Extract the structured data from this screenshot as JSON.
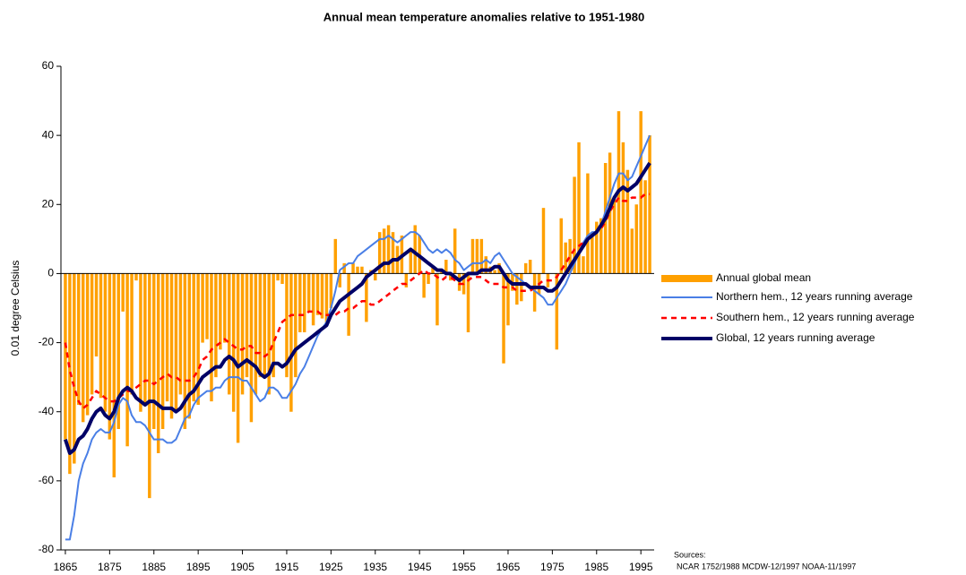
{
  "chart_data": {
    "type": "combo",
    "title": "Annual mean temperature anomalies relative to 1951-1980",
    "y_label": "0.01 degree Celsius",
    "sources": [
      "Sources:",
      "NCAR 1752/1988 MCDW-12/1997 NOAA-11/1997"
    ],
    "xlim": [
      1864,
      1998
    ],
    "xticks": [
      1865,
      1875,
      1885,
      1895,
      1905,
      1915,
      1925,
      1935,
      1945,
      1955,
      1965,
      1975,
      1985,
      1995
    ],
    "ylim": [
      -80,
      60
    ],
    "yticks": [
      -80,
      -60,
      -40,
      -20,
      0,
      20,
      40,
      60
    ],
    "legend": "right",
    "x": [
      1865,
      1866,
      1867,
      1868,
      1869,
      1870,
      1871,
      1872,
      1873,
      1874,
      1875,
      1876,
      1877,
      1878,
      1879,
      1880,
      1881,
      1882,
      1883,
      1884,
      1885,
      1886,
      1887,
      1888,
      1889,
      1890,
      1891,
      1892,
      1893,
      1894,
      1895,
      1896,
      1897,
      1898,
      1899,
      1900,
      1901,
      1902,
      1903,
      1904,
      1905,
      1906,
      1907,
      1908,
      1909,
      1910,
      1911,
      1912,
      1913,
      1914,
      1915,
      1916,
      1917,
      1918,
      1919,
      1920,
      1921,
      1922,
      1923,
      1924,
      1925,
      1926,
      1927,
      1928,
      1929,
      1930,
      1931,
      1932,
      1933,
      1934,
      1935,
      1936,
      1937,
      1938,
      1939,
      1940,
      1941,
      1942,
      1943,
      1944,
      1945,
      1946,
      1947,
      1948,
      1949,
      1950,
      1951,
      1952,
      1953,
      1954,
      1955,
      1956,
      1957,
      1958,
      1959,
      1960,
      1961,
      1962,
      1963,
      1964,
      1965,
      1966,
      1967,
      1968,
      1969,
      1970,
      1971,
      1972,
      1973,
      1974,
      1975,
      1976,
      1977,
      1978,
      1979,
      1980,
      1981,
      1982,
      1983,
      1984,
      1985,
      1986,
      1987,
      1988,
      1989,
      1990,
      1991,
      1992,
      1993,
      1994,
      1995,
      1996,
      1997
    ],
    "series": [
      {
        "name": "Annual global mean",
        "type": "bar",
        "color": "#ffa000",
        "values": [
          -48,
          -58,
          -55,
          -38,
          -43,
          -41,
          -35,
          -24,
          -36,
          -40,
          -48,
          -59,
          -45,
          -11,
          -50,
          -35,
          -2,
          -40,
          -38,
          -65,
          -45,
          -52,
          -45,
          -37,
          -42,
          -40,
          -35,
          -45,
          -42,
          -37,
          -38,
          -20,
          -19,
          -37,
          -30,
          -22,
          -20,
          -35,
          -40,
          -49,
          -35,
          -30,
          -43,
          -35,
          -30,
          -30,
          -35,
          -30,
          -2,
          -3,
          -30,
          -40,
          -30,
          -17,
          -17,
          -11,
          -15,
          -12,
          -13,
          -15,
          -10,
          10,
          -4,
          3,
          -18,
          3,
          2,
          2,
          -14,
          1,
          -2,
          12,
          13,
          14,
          12,
          8,
          11,
          -4,
          7,
          14,
          11,
          -7,
          -3,
          2,
          -15,
          1,
          4,
          -2,
          13,
          -5,
          -6,
          -17,
          10,
          10,
          10,
          5,
          2,
          1,
          3,
          -26,
          -15,
          -5,
          -9,
          -8,
          3,
          4,
          -11,
          -6,
          19,
          -4,
          0,
          -22,
          16,
          9,
          10,
          28,
          38,
          5,
          29,
          12,
          15,
          16,
          32,
          35,
          22,
          47,
          38,
          30,
          13,
          20,
          47,
          27,
          40
        ]
      },
      {
        "name": "Northern hem., 12 years running average",
        "type": "line",
        "color": "#4a7fe6",
        "values": [
          -77,
          -77,
          -70,
          -60,
          -55,
          -52,
          -48,
          -46,
          -45,
          -46,
          -46,
          -43,
          -38,
          -36,
          -37,
          -41,
          -43,
          -43,
          -44,
          -46,
          -48,
          -48,
          -48,
          -49,
          -49,
          -48,
          -45,
          -42,
          -41,
          -38,
          -36,
          -35,
          -34,
          -34,
          -33,
          -33,
          -31,
          -30,
          -30,
          -30,
          -31,
          -31,
          -33,
          -35,
          -37,
          -36,
          -33,
          -33,
          -34,
          -36,
          -36,
          -34,
          -32,
          -29,
          -27,
          -24,
          -21,
          -18,
          -16,
          -14,
          -10,
          -5,
          1,
          2,
          3,
          3,
          5,
          6,
          7,
          8,
          9,
          10,
          10,
          11,
          10,
          9,
          10,
          11,
          12,
          12,
          11,
          9,
          7,
          6,
          7,
          6,
          7,
          6,
          4,
          3,
          1,
          2,
          3,
          3,
          3,
          4,
          3,
          5,
          6,
          4,
          2,
          0,
          -1,
          -2,
          -3,
          -4,
          -5,
          -6,
          -7,
          -9,
          -9,
          -7,
          -5,
          -3,
          0,
          3,
          6,
          9,
          11,
          12,
          12,
          14,
          18,
          22,
          26,
          29,
          29,
          27,
          28,
          31,
          34,
          37,
          40
        ]
      },
      {
        "name": "Southern hem., 12 years running average",
        "type": "line",
        "color": "#ff0000",
        "linestyle": "dashed",
        "values": [
          -20,
          -28,
          -33,
          -37,
          -39,
          -38,
          -36,
          -34,
          -35,
          -36,
          -37,
          -37,
          -36,
          -35,
          -34,
          -34,
          -33,
          -32,
          -31,
          -31,
          -32,
          -31,
          -30,
          -29,
          -30,
          -30,
          -31,
          -31,
          -31,
          -30,
          -28,
          -25,
          -24,
          -22,
          -21,
          -20,
          -19,
          -20,
          -21,
          -22,
          -22,
          -21,
          -21,
          -23,
          -23,
          -24,
          -23,
          -20,
          -17,
          -14,
          -13,
          -12,
          -12,
          -12,
          -12,
          -11,
          -11,
          -11,
          -12,
          -12,
          -12,
          -12,
          -11,
          -11,
          -10,
          -10,
          -9,
          -8,
          -8,
          -9,
          -9,
          -8,
          -7,
          -6,
          -5,
          -4,
          -3,
          -3,
          -2,
          -1,
          0,
          1,
          0,
          0,
          -1,
          -2,
          -1,
          -1,
          -2,
          -3,
          -3,
          -2,
          -1,
          -1,
          -1,
          -2,
          -3,
          -3,
          -3,
          -4,
          -4,
          -4,
          -5,
          -5,
          -5,
          -5,
          -4,
          -3,
          -2,
          -2,
          -2,
          -1,
          1,
          3,
          5,
          7,
          8,
          9,
          10,
          11,
          12,
          13,
          15,
          18,
          20,
          22,
          21,
          21,
          22,
          22,
          22,
          23,
          23
        ]
      },
      {
        "name": "Global, 12 years running average",
        "type": "line",
        "color": "#000066",
        "linestyle": "thick",
        "values": [
          -48,
          -52,
          -51,
          -48,
          -47,
          -45,
          -42,
          -40,
          -39,
          -41,
          -42,
          -40,
          -36,
          -34,
          -33,
          -34,
          -36,
          -37,
          -38,
          -37,
          -37,
          -38,
          -39,
          -39,
          -39,
          -40,
          -39,
          -37,
          -35,
          -34,
          -32,
          -30,
          -29,
          -28,
          -27,
          -27,
          -25,
          -24,
          -25,
          -27,
          -26,
          -25,
          -26,
          -27,
          -29,
          -30,
          -29,
          -26,
          -26,
          -27,
          -26,
          -24,
          -22,
          -21,
          -20,
          -19,
          -18,
          -17,
          -16,
          -15,
          -12,
          -10,
          -8,
          -7,
          -6,
          -5,
          -4,
          -3,
          -1,
          0,
          1,
          2,
          3,
          3,
          4,
          4,
          5,
          6,
          7,
          6,
          5,
          4,
          3,
          2,
          1,
          1,
          0,
          0,
          -1,
          -2,
          -1,
          0,
          0,
          0,
          1,
          1,
          1,
          2,
          2,
          0,
          -2,
          -3,
          -3,
          -3,
          -3,
          -4,
          -4,
          -4,
          -4,
          -5,
          -5,
          -4,
          -2,
          0,
          2,
          4,
          6,
          8,
          10,
          11,
          12,
          14,
          16,
          19,
          22,
          24,
          25,
          24,
          25,
          26,
          28,
          30,
          32
        ]
      }
    ]
  }
}
